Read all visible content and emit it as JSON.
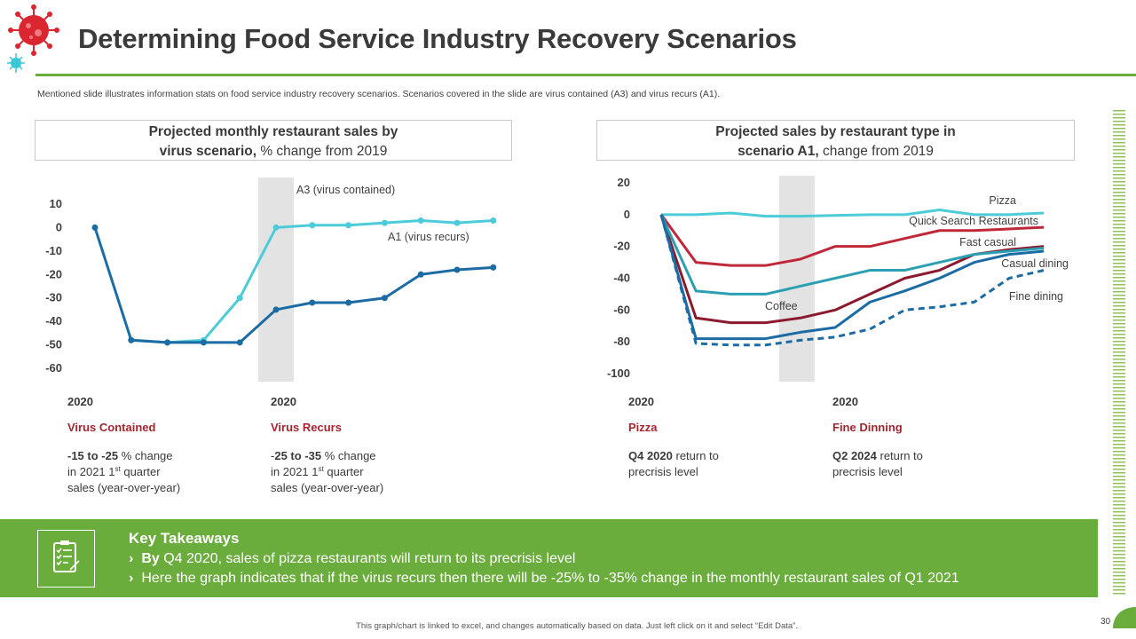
{
  "header": {
    "title": "Determining Food Service Industry Recovery Scenarios",
    "subtitle": "Mentioned slide illustrates information stats on food service industry recovery scenarios. Scenarios covered in the slide are virus contained (A3) and virus recurs (A1)."
  },
  "chart1_box": {
    "title_bold_1": "Projected monthly restaurant sales by",
    "title_bold_2": "virus scenario,",
    "title_rest": " % change from 2019"
  },
  "chart2_box": {
    "title_bold_1": "Projected sales by restaurant type in",
    "title_bold_2": "scenario A1,",
    "title_rest": " change from 2019"
  },
  "chart_data": [
    {
      "type": "line",
      "title": "Projected monthly restaurant sales by virus scenario, % change from 2019",
      "ylim": [
        -60,
        10
      ],
      "yticks": [
        "10",
        "0",
        "-10",
        "-20",
        "-30",
        "-40",
        "-50",
        "-60"
      ],
      "x_points": 12,
      "highlight_band_index": 5,
      "series": [
        {
          "name": "A3 (virus contained)",
          "color": "#4ccbd8",
          "values": [
            null,
            -48,
            -49,
            -48,
            -30,
            0,
            1,
            1,
            2,
            3,
            2,
            3
          ]
        },
        {
          "name": "A1 (virus recurs)",
          "color": "#1b6ba4",
          "values": [
            0,
            -48,
            -49,
            -49,
            -49,
            -35,
            -32,
            -32,
            -30,
            -20,
            -18,
            -17
          ]
        }
      ]
    },
    {
      "type": "line",
      "title": "Projected sales by restaurant type in scenario A1, change from 2019",
      "ylim": [
        -100,
        20
      ],
      "yticks": [
        "20",
        "0",
        "-20",
        "-40",
        "-60",
        "-80",
        "-100"
      ],
      "x_points": 12,
      "highlight_band_index": 4,
      "annotation": "Coffee",
      "series": [
        {
          "name": "Pizza",
          "color": "#4ccbd8",
          "values": [
            0,
            0,
            1,
            -1,
            -1,
            -0.5,
            0,
            0,
            3,
            0,
            0,
            1
          ],
          "dashed": false
        },
        {
          "name": "Quick Search Restaurants",
          "color": "#c0283a",
          "values": [
            0,
            -30,
            -32,
            -32,
            -28,
            -20,
            -20,
            -15,
            -10,
            -10,
            -9,
            -8
          ],
          "dashed": false
        },
        {
          "name": "Fast casual",
          "color": "#8b1a2e",
          "values": [
            0,
            -65,
            -68,
            -68,
            -65,
            -60,
            -50,
            -40,
            -35,
            -25,
            -22,
            -20
          ],
          "dashed": false
        },
        {
          "name": "Casual dining",
          "color": "#2ca0b2",
          "values": [
            0,
            -48,
            -50,
            -50,
            -45,
            -40,
            -35,
            -35,
            -30,
            -25,
            -23,
            -21
          ],
          "dashed": false
        },
        {
          "name": "Coffee",
          "color": "#1b6ba4",
          "values": [
            0,
            -78,
            -78,
            -78,
            -74,
            -71,
            -55,
            -48,
            -40,
            -30,
            -25,
            -23
          ],
          "dashed": false
        },
        {
          "name": "Fine dining",
          "color": "#1b6ba4",
          "values": [
            0,
            -81,
            -82,
            -82,
            -79,
            -77,
            -72,
            -60,
            -58,
            -55,
            -40,
            -35
          ],
          "dashed": true
        }
      ]
    }
  ],
  "info": {
    "virus_contained": {
      "year": "2020",
      "heading": "Virus Contained",
      "bold": "-15 to -25",
      "line1_rest": " % change",
      "line2_pre": "in 2021  1",
      "line2_sup": "st",
      "line2_post": " quarter",
      "line3": "sales (year-over-year)"
    },
    "virus_recurs": {
      "year": "2020",
      "heading": "Virus Recurs",
      "prefix": "-",
      "bold": "25 to -35",
      "line1_rest": " % change",
      "line2_pre": "in 2021  1",
      "line2_sup": "st",
      "line2_post": " quarter",
      "line3": "sales (year-over-year)"
    },
    "pizza": {
      "year": "2020",
      "heading": "Pizza",
      "bold": "Q4 2020",
      "line1_rest": " return to",
      "line2": "precrisis level"
    },
    "fine_dinning": {
      "year": "2020",
      "heading": "Fine Dinning",
      "bold": "Q2 2024",
      "line1_rest": " return to",
      "line2": "precrisis level"
    }
  },
  "takeaways": {
    "title": "Key Takeaways",
    "item1_bold": "By",
    "item1_rest": " Q4 2020, sales of pizza restaurants will return to its precrisis level",
    "item2": "Here the graph indicates that if the virus recurs then there will be -25% to -35% change in the monthly restaurant sales of Q1 2021",
    "chevron": "›"
  },
  "footer": {
    "note": "This graph/chart is linked to excel, and changes automatically based on data. Just left click on it and select “Edit Data”.",
    "page_number": "30"
  },
  "colors": {
    "accent_green": "#6aad3d",
    "heading_red": "#a3262f"
  }
}
